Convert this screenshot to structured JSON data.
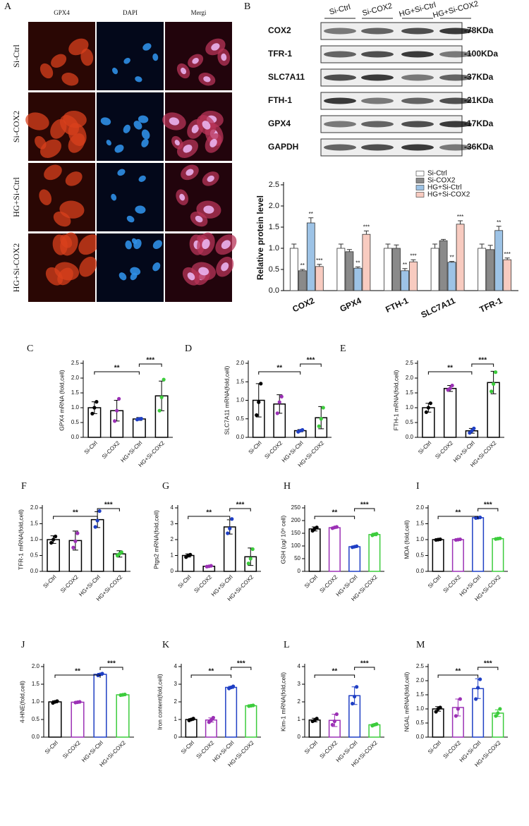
{
  "figure_a": {
    "panel": "A",
    "columns": [
      "GPX4",
      "DAPI",
      "Mergi"
    ],
    "rows": [
      "Si-Ctrl",
      "Si-COX2",
      "HG+Si-Ctrl",
      "HG+Si-COX2"
    ]
  },
  "figure_b_blot": {
    "panel": "B",
    "lanes": [
      "Si-Ctrl",
      "Si-COX2",
      "HG+Si-Ctrl",
      "HG+Si-COX2"
    ],
    "bands": [
      {
        "protein": "COX2",
        "size": "-78KDa"
      },
      {
        "protein": "TFR-1",
        "size": "-100KDa"
      },
      {
        "protein": "SLC7A11",
        "size": "-37KDa"
      },
      {
        "protein": "FTH-1",
        "size": "-21KDa"
      },
      {
        "protein": "GPX4",
        "size": "-17KDa"
      },
      {
        "protein": "GAPDH",
        "size": "-36KDa"
      }
    ]
  },
  "chart_data": [
    {
      "type": "grouped_bar",
      "y_label": "Relative protein level",
      "categories": [
        "COX2",
        "GPX4",
        "FTH-1",
        "SLC7A11",
        "TFR-1"
      ],
      "ylim": [
        0,
        2.5
      ],
      "yticks": [
        {
          "value": 0,
          "label": "0.0"
        },
        0.5,
        {
          "value": 1,
          "label": "1.0"
        },
        1.5,
        {
          "value": 2,
          "label": "2.0"
        },
        2.5
      ],
      "legend": "top-right",
      "series": [
        {
          "name": "Si-Ctrl",
          "color": "#ffffff",
          "values": [
            1.0,
            1.0,
            1.0,
            1.0,
            1.0
          ],
          "errors": [
            0.1,
            0.1,
            0.1,
            0.1,
            0.1
          ]
        },
        {
          "name": "Si-COX2",
          "color": "#8a8a8a",
          "values": [
            0.47,
            0.92,
            1.0,
            1.18,
            0.97
          ],
          "errors": [
            0.03,
            0.05,
            0.08,
            0.03,
            0.1
          ],
          "annotations": [
            "**",
            null,
            null,
            null,
            null
          ]
        },
        {
          "name": "HG+Si-Ctrl",
          "color": "#9dc3e6",
          "values": [
            1.6,
            0.53,
            0.47,
            0.67,
            1.42
          ],
          "errors": [
            0.12,
            0.03,
            0.05,
            0.02,
            0.1
          ],
          "annotations": [
            "**",
            "**",
            "**",
            "**",
            "**"
          ]
        },
        {
          "name": "HG+Si-COX2",
          "color": "#f8cbc0",
          "values": [
            0.57,
            1.33,
            0.68,
            1.57,
            0.73
          ],
          "errors": [
            0.05,
            0.08,
            0.05,
            0.08,
            0.04
          ],
          "annotations": [
            "***",
            "***",
            "***",
            "***",
            "***"
          ]
        }
      ]
    },
    {
      "type": "bar",
      "panel": "C",
      "y_label": "GPX4 mRNA (fold,cell)",
      "categories": [
        "Si-Ctrl",
        "Si-COX2",
        "HG+Si-Ctrl",
        "HG+Si-COX2"
      ],
      "ylim": [
        0,
        2.5
      ],
      "yticks": [
        {
          "value": 0,
          "label": "0.0"
        },
        0.5,
        {
          "value": 1,
          "label": "1.0"
        },
        1.5,
        {
          "value": 2,
          "label": "2.0"
        },
        2.5
      ],
      "values": [
        1.0,
        0.9,
        0.62,
        1.4
      ],
      "errors": [
        0.2,
        0.35,
        0.05,
        0.5
      ],
      "points": [
        [
          0.8,
          1.0,
          1.2
        ],
        [
          0.55,
          0.9,
          1.3
        ],
        [
          0.6,
          0.62,
          0.63
        ],
        [
          0.9,
          1.35,
          1.95
        ]
      ],
      "bar_colors": [
        "#000000",
        "#000000",
        "#000000",
        "#000000"
      ],
      "point_colors": [
        "#000000",
        "#9b30b5",
        "#1f3fc4",
        "#3ccc3c"
      ],
      "significance": [
        "**",
        "***"
      ]
    },
    {
      "type": "bar",
      "panel": "D",
      "y_label": "SLC7A11 mRNA(fold,cell)",
      "categories": [
        "Si-Ctrl",
        "Si-COX2",
        "HG+Si-Ctrl",
        "HG+Si-COX2"
      ],
      "ylim": [
        0,
        2
      ],
      "yticks": [
        {
          "value": 0,
          "label": "0.0"
        },
        0.5,
        {
          "value": 1,
          "label": "1.0"
        },
        1.5,
        {
          "value": 2,
          "label": "2.0"
        }
      ],
      "values": [
        1.0,
        0.9,
        0.18,
        0.53
      ],
      "errors": [
        0.45,
        0.25,
        0.03,
        0.3
      ],
      "points": [
        [
          0.6,
          0.95,
          1.45
        ],
        [
          0.65,
          0.95,
          1.1
        ],
        [
          0.15,
          0.18,
          0.2
        ],
        [
          0.3,
          0.5,
          0.8
        ]
      ],
      "bar_colors": [
        "#000000",
        "#000000",
        "#000000",
        "#000000"
      ],
      "point_colors": [
        "#000000",
        "#9b30b5",
        "#1f3fc4",
        "#3ccc3c"
      ],
      "significance": [
        "**",
        "***"
      ]
    },
    {
      "type": "bar",
      "panel": "E",
      "y_label": "FTH-1 mRNA(fold,cell)",
      "categories": [
        "Si-Ctrl",
        "Si-COX2",
        "HG+Si-Ctrl",
        "HG+Si-COX2"
      ],
      "ylim": [
        0,
        2.5
      ],
      "yticks": [
        {
          "value": 0,
          "label": "0.0"
        },
        0.5,
        {
          "value": 1,
          "label": "1.0"
        },
        1.5,
        {
          "value": 2,
          "label": "2.0"
        },
        2.5
      ],
      "values": [
        1.0,
        1.65,
        0.22,
        1.85
      ],
      "errors": [
        0.15,
        0.1,
        0.08,
        0.38
      ],
      "points": [
        [
          0.85,
          1.0,
          1.15
        ],
        [
          1.6,
          1.65,
          1.75
        ],
        [
          0.15,
          0.22,
          0.3
        ],
        [
          1.55,
          1.8,
          2.2
        ]
      ],
      "bar_colors": [
        "#000000",
        "#000000",
        "#000000",
        "#000000"
      ],
      "point_colors": [
        "#000000",
        "#9b30b5",
        "#1f3fc4",
        "#3ccc3c"
      ],
      "significance": [
        "**",
        "***"
      ]
    },
    {
      "type": "bar",
      "panel": "F",
      "y_label": "TFR-1 mRNA(fold,cell)",
      "categories": [
        "Si-Ctrl",
        "Si-COX2",
        "HG+Si-Ctrl",
        "HG+Si-COX2"
      ],
      "ylim": [
        0,
        2
      ],
      "yticks": [
        {
          "value": 0,
          "label": "0.0"
        },
        0.5,
        {
          "value": 1,
          "label": "1.0"
        },
        1.5,
        {
          "value": 2,
          "label": "2.0"
        }
      ],
      "values": [
        1.0,
        0.97,
        1.63,
        0.55
      ],
      "errors": [
        0.12,
        0.3,
        0.25,
        0.1
      ],
      "points": [
        [
          0.9,
          1.0,
          1.1
        ],
        [
          0.75,
          0.95,
          1.2
        ],
        [
          1.4,
          1.6,
          1.9
        ],
        [
          0.5,
          0.55,
          0.6
        ]
      ],
      "bar_colors": [
        "#000000",
        "#000000",
        "#000000",
        "#000000"
      ],
      "point_colors": [
        "#000000",
        "#9b30b5",
        "#1f3fc4",
        "#3ccc3c"
      ],
      "significance": [
        "**",
        "***"
      ]
    },
    {
      "type": "bar",
      "panel": "G",
      "y_label": "Ptgs2 mRNA(fold,cell)",
      "categories": [
        "Si-Ctrl",
        "Si-COX2",
        "HG+Si-Ctrl",
        "HG+Si-COX2"
      ],
      "ylim": [
        0,
        4
      ],
      "yticks": [
        0,
        1,
        2,
        3,
        4
      ],
      "values": [
        1.0,
        0.32,
        2.8,
        0.92
      ],
      "errors": [
        0.1,
        0.05,
        0.45,
        0.55
      ],
      "points": [
        [
          0.9,
          1.0,
          1.05
        ],
        [
          0.3,
          0.32,
          0.35
        ],
        [
          2.4,
          2.7,
          3.3
        ],
        [
          0.5,
          0.8,
          1.4
        ]
      ],
      "bar_colors": [
        "#000000",
        "#000000",
        "#000000",
        "#000000"
      ],
      "point_colors": [
        "#000000",
        "#9b30b5",
        "#1f3fc4",
        "#3ccc3c"
      ],
      "significance": [
        "**",
        "***"
      ]
    },
    {
      "type": "bar",
      "panel": "H",
      "y_label": "GSH (ug/ 10⁶ cell)",
      "categories": [
        "Si-Ctrl",
        "Si-COX2",
        "HG+Si-Ctrl",
        "HG+Si-COX2"
      ],
      "ylim": [
        0,
        250
      ],
      "yticks": [
        0,
        50,
        100,
        150,
        200,
        250
      ],
      "values": [
        167,
        172,
        97,
        145
      ],
      "errors": [
        8,
        3,
        3,
        5
      ],
      "points": [
        [
          160,
          168,
          173
        ],
        [
          170,
          173,
          175
        ],
        [
          95,
          97,
          99
        ],
        [
          142,
          146,
          148
        ]
      ],
      "bar_colors": [
        "#000000",
        "#9b30b5",
        "#1f3fc4",
        "#3ccc3c"
      ],
      "point_colors": [
        "#000000",
        "#9b30b5",
        "#1f3fc4",
        "#3ccc3c"
      ],
      "significance": [
        "**",
        "***"
      ]
    },
    {
      "type": "bar",
      "panel": "I",
      "y_label": "MDA (fold,cell)",
      "categories": [
        "Si-Ctrl",
        "Si-COX2",
        "HG+Si-Ctrl",
        "HG+Si-COX2"
      ],
      "ylim": [
        0,
        2
      ],
      "yticks": [
        {
          "value": 0,
          "label": "0.0"
        },
        0.5,
        {
          "value": 1,
          "label": "1.0"
        },
        1.5,
        {
          "value": 2,
          "label": "2.0"
        }
      ],
      "values": [
        1.0,
        1.0,
        1.69,
        1.03
      ],
      "errors": [
        0.02,
        0.02,
        0.02,
        0.01
      ],
      "points": [
        [
          0.99,
          1.0,
          1.01
        ],
        [
          0.99,
          1.0,
          1.01
        ],
        [
          1.68,
          1.69,
          1.7
        ],
        [
          1.02,
          1.03,
          1.04
        ]
      ],
      "bar_colors": [
        "#000000",
        "#9b30b5",
        "#1f3fc4",
        "#3ccc3c"
      ],
      "point_colors": [
        "#000000",
        "#9b30b5",
        "#1f3fc4",
        "#3ccc3c"
      ],
      "significance": [
        "**",
        "***"
      ]
    },
    {
      "type": "bar",
      "panel": "J",
      "y_label": "4-HNE(fold,cell)",
      "categories": [
        "Si-Ctrl",
        "Si-COX2",
        "HG+Si-Ctrl",
        "HG+Si-COX2"
      ],
      "ylim": [
        0,
        2
      ],
      "yticks": [
        {
          "value": 0,
          "label": "0.0"
        },
        0.5,
        {
          "value": 1,
          "label": "1.0"
        },
        1.5,
        {
          "value": 2,
          "label": "2.0"
        }
      ],
      "values": [
        1.0,
        0.99,
        1.78,
        1.2
      ],
      "errors": [
        0.03,
        0.01,
        0.03,
        0.01
      ],
      "points": [
        [
          0.97,
          1.0,
          1.02
        ],
        [
          0.98,
          0.99,
          1.0
        ],
        [
          1.75,
          1.78,
          1.8
        ],
        [
          1.19,
          1.2,
          1.21
        ]
      ],
      "bar_colors": [
        "#000000",
        "#9b30b5",
        "#1f3fc4",
        "#3ccc3c"
      ],
      "point_colors": [
        "#000000",
        "#9b30b5",
        "#1f3fc4",
        "#3ccc3c"
      ],
      "significance": [
        "**",
        "***"
      ]
    },
    {
      "type": "bar",
      "panel": "K",
      "y_label": "Iron content(fold,cell)",
      "categories": [
        "Si-Ctrl",
        "Si-COX2",
        "HG+Si-Ctrl",
        "HG+Si-COX2"
      ],
      "ylim": [
        0,
        4
      ],
      "yticks": [
        0,
        1,
        2,
        3,
        4
      ],
      "values": [
        1.0,
        0.97,
        2.82,
        1.78
      ],
      "errors": [
        0.05,
        0.12,
        0.06,
        0.02
      ],
      "points": [
        [
          0.95,
          1.0,
          1.05
        ],
        [
          0.85,
          0.97,
          1.1
        ],
        [
          2.76,
          2.82,
          2.88
        ],
        [
          1.76,
          1.78,
          1.8
        ]
      ],
      "bar_colors": [
        "#000000",
        "#9b30b5",
        "#1f3fc4",
        "#3ccc3c"
      ],
      "point_colors": [
        "#000000",
        "#9b30b5",
        "#1f3fc4",
        "#3ccc3c"
      ],
      "significance": [
        "**",
        "***"
      ]
    },
    {
      "type": "bar",
      "panel": "L",
      "y_label": "Kim-1 mRNA(fold,cell)",
      "categories": [
        "Si-Ctrl",
        "Si-COX2",
        "HG+Si-Ctrl",
        "HG+Si-COX2"
      ],
      "ylim": [
        0,
        4
      ],
      "yticks": [
        0,
        1,
        2,
        3,
        4
      ],
      "values": [
        0.97,
        0.95,
        2.35,
        0.7
      ],
      "errors": [
        0.1,
        0.35,
        0.5,
        0.05
      ],
      "points": [
        [
          0.9,
          0.95,
          1.05
        ],
        [
          0.7,
          0.9,
          1.3
        ],
        [
          1.9,
          2.3,
          2.85
        ],
        [
          0.65,
          0.7,
          0.74
        ]
      ],
      "bar_colors": [
        "#000000",
        "#9b30b5",
        "#1f3fc4",
        "#3ccc3c"
      ],
      "point_colors": [
        "#000000",
        "#9b30b5",
        "#1f3fc4",
        "#3ccc3c"
      ],
      "significance": [
        "**",
        "***"
      ]
    },
    {
      "type": "bar",
      "panel": "M",
      "y_label": "NGAL mRNA(fold,cell)",
      "categories": [
        "Si-Ctrl",
        "Si-COX2",
        "HG+Si-Ctrl",
        "HG+Si-COX2"
      ],
      "ylim": [
        0,
        2.5
      ],
      "yticks": [
        {
          "value": 0,
          "label": "0.0"
        },
        0.5,
        {
          "value": 1,
          "label": "1.0"
        },
        1.5,
        {
          "value": 2,
          "label": "2.0"
        },
        2.5
      ],
      "values": [
        1.0,
        1.05,
        1.72,
        0.85
      ],
      "errors": [
        0.08,
        0.3,
        0.35,
        0.12
      ],
      "points": [
        [
          0.9,
          1.0,
          1.05
        ],
        [
          0.75,
          1.0,
          1.35
        ],
        [
          1.35,
          1.75,
          2.05
        ],
        [
          0.75,
          0.85,
          1.0
        ]
      ],
      "bar_colors": [
        "#000000",
        "#9b30b5",
        "#1f3fc4",
        "#3ccc3c"
      ],
      "point_colors": [
        "#000000",
        "#9b30b5",
        "#1f3fc4",
        "#3ccc3c"
      ],
      "significance": [
        "**",
        "***"
      ]
    }
  ]
}
